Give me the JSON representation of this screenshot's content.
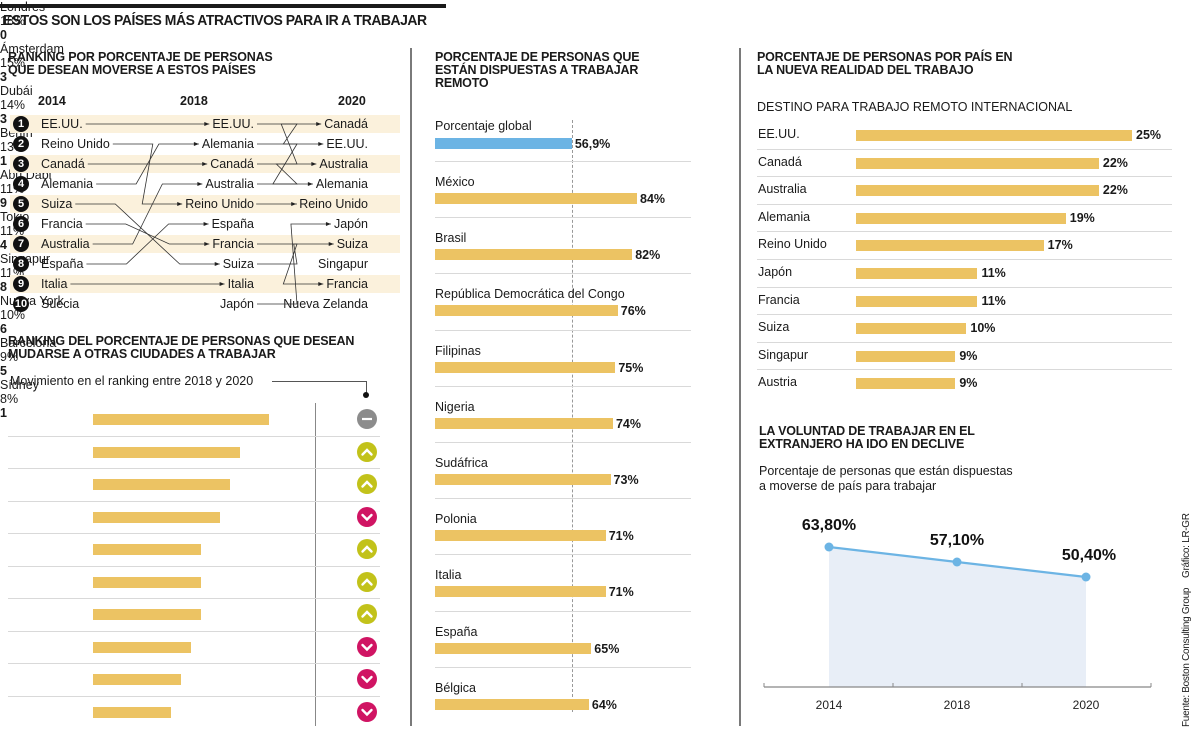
{
  "header": {
    "title": "ESTOS SON LOS PAÍSES MÁS ATRACTIVOS PARA IR A TRABAJAR"
  },
  "colors": {
    "bar": "#ecc363",
    "global_bar": "#6cb4e4",
    "row_band": "#fbf1dc",
    "up": "#c2c21a",
    "down": "#d01463",
    "same": "#8c8c8c",
    "line": "#6cb4e4",
    "area": "#e8eef7"
  },
  "chart_data": [
    {
      "id": "ranking_paises",
      "type": "table",
      "title": "RANKING POR PORCENTAJE DE PERSONAS QUE DESEAN MOVERSE A ESTOS PAÍSES",
      "years": [
        "2014",
        "2018",
        "2020"
      ],
      "ranks": [
        "1",
        "2",
        "3",
        "4",
        "5",
        "6",
        "7",
        "8",
        "9",
        "10"
      ],
      "columns": {
        "2014": [
          "EE.UU.",
          "Reino Unido",
          "Canadá",
          "Alemania",
          "Suiza",
          "Francia",
          "Australia",
          "España",
          "Italia",
          "Suecia"
        ],
        "2018": [
          "EE.UU.",
          "Alemania",
          "Canadá",
          "Australia",
          "Reino Unido",
          "España",
          "Francia",
          "Suiza",
          "Italia",
          "Japón"
        ],
        "2020": [
          "Canadá",
          "EE.UU.",
          "Australia",
          "Alemania",
          "Reino Unido",
          "Japón",
          "Suiza",
          "Singapur",
          "Francia",
          "Nueva Zelanda"
        ]
      },
      "links_2014_2018": [
        [
          1,
          1
        ],
        [
          2,
          5
        ],
        [
          3,
          3
        ],
        [
          4,
          2
        ],
        [
          5,
          8
        ],
        [
          6,
          7
        ],
        [
          7,
          4
        ],
        [
          8,
          6
        ],
        [
          9,
          9
        ]
      ],
      "links_2018_2020": [
        [
          1,
          2
        ],
        [
          2,
          4
        ],
        [
          3,
          1
        ],
        [
          4,
          3
        ],
        [
          5,
          5
        ],
        [
          7,
          9
        ],
        [
          8,
          7
        ],
        [
          10,
          6
        ]
      ]
    },
    {
      "id": "ciudades",
      "type": "bar",
      "title": "RANKING DEL PORCENTAJE DE PERSONAS QUE DESEAN MUDARSE A OTRAS CIUDADES A TRABAJAR",
      "subtitle": "Movimiento en el ranking entre 2018 y 2020",
      "categories": [
        "Londres",
        "Ámsterdam",
        "Dubái",
        "Berlín",
        "Abu Dabi",
        "Tokio",
        "Singapur",
        "Nueva York",
        "Barcelona",
        "Sídney"
      ],
      "values": [
        18,
        15,
        14,
        13,
        11,
        11,
        11,
        10,
        9,
        8
      ],
      "labels": [
        "18%",
        "15%",
        "14%",
        "13%",
        "11%",
        "11%",
        "11%",
        "10%",
        "9%",
        "8%"
      ],
      "movement": [
        0,
        3,
        3,
        1,
        9,
        4,
        8,
        6,
        5,
        1
      ],
      "movement_direction": [
        "same",
        "up",
        "up",
        "down",
        "up",
        "up",
        "up",
        "down",
        "down",
        "down"
      ],
      "unit": "%"
    },
    {
      "id": "remoto",
      "type": "bar",
      "title": "PORCENTAJE DE PERSONAS QUE ESTÁN DISPUESTAS A TRABAJAR REMOTO",
      "reference": {
        "label": "Porcentaje global",
        "value": 56.9,
        "display": "56,9%"
      },
      "categories": [
        "México",
        "Brasil",
        "República Democrática del Congo",
        "Filipinas",
        "Nigeria",
        "Sudáfrica",
        "Polonia",
        "Italia",
        "España",
        "Bélgica"
      ],
      "values": [
        84,
        82,
        76,
        75,
        74,
        73,
        71,
        71,
        65,
        64
      ],
      "labels": [
        "84%",
        "82%",
        "76%",
        "75%",
        "74%",
        "73%",
        "71%",
        "71%",
        "65%",
        "64%"
      ],
      "unit": "%"
    },
    {
      "id": "destino_remoto",
      "type": "bar",
      "title": "PORCENTAJE DE PERSONAS POR PAÍS EN LA NUEVA REALIDAD DEL TRABAJO",
      "subtitle": "DESTINO PARA TRABAJO REMOTO INTERNACIONAL",
      "categories": [
        "EE.UU.",
        "Canadá",
        "Australia",
        "Alemania",
        "Reino Unido",
        "Japón",
        "Francia",
        "Suiza",
        "Singapur",
        "Austria"
      ],
      "values": [
        25,
        22,
        22,
        19,
        17,
        11,
        11,
        10,
        9,
        9
      ],
      "labels": [
        "25%",
        "22%",
        "22%",
        "19%",
        "17%",
        "11%",
        "11%",
        "10%",
        "9%",
        "9%"
      ],
      "unit": "%"
    },
    {
      "id": "declive",
      "type": "area",
      "title": "LA VOLUNTAD DE TRABAJAR EN EL EXTRANJERO HA IDO EN DECLIVE",
      "subtitle": "Porcentaje de personas que están dispuestas a moverse de país para trabajar",
      "x": [
        "2014",
        "2018",
        "2020"
      ],
      "values": [
        63.8,
        57.1,
        50.4
      ],
      "labels": [
        "63,80%",
        "57,10%",
        "50,40%"
      ],
      "xlabel": "",
      "ylabel": "",
      "grid": false
    }
  ],
  "credits": {
    "source": "Fuente: Boston Consulting Group",
    "graphic": "Gráfico: LR-GR"
  }
}
